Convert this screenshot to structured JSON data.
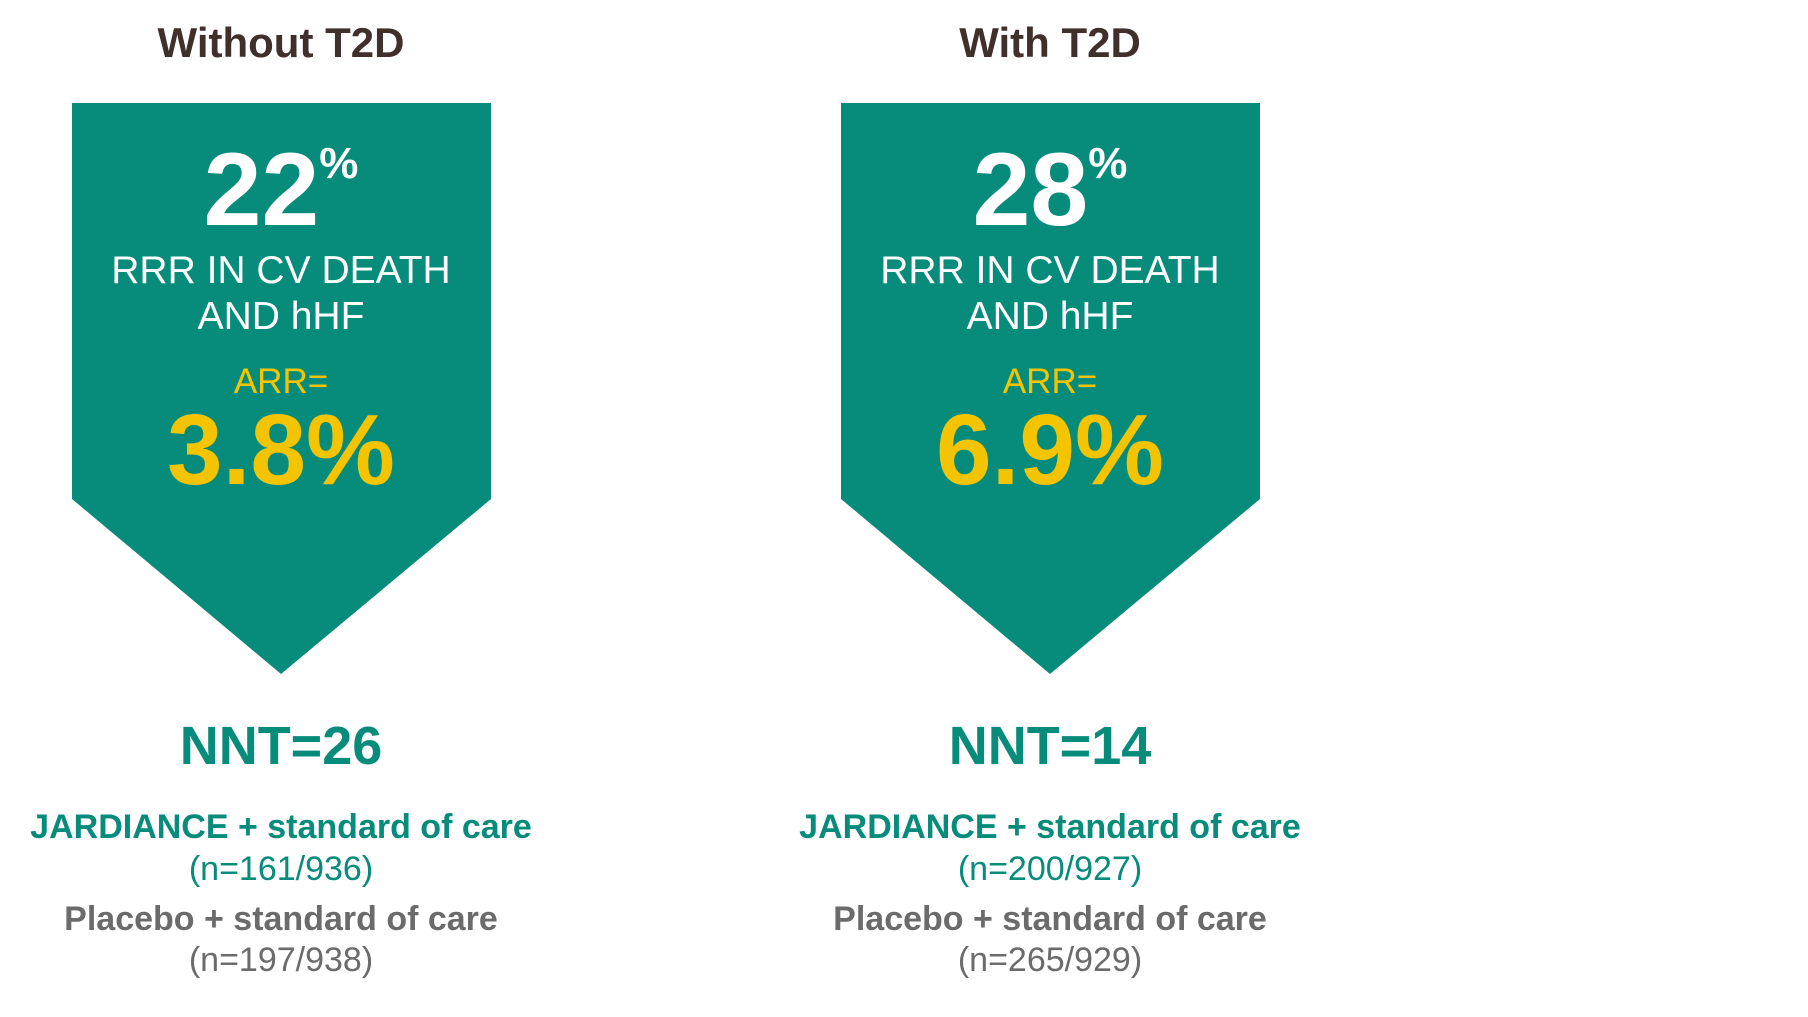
{
  "colors": {
    "teal": "#078C7B",
    "yellow": "#F5C400",
    "title": "#40302C",
    "gray": "#6B6B6B"
  },
  "panels": [
    {
      "title": "Without T2D",
      "rrr_value": "22",
      "rrr_unit": "%",
      "rrr_line1": "RRR IN CV DEATH",
      "rrr_line2": "AND hHF",
      "arr_label": "ARR=",
      "arr_value": "3.8%",
      "nnt": "NNT=26",
      "jardiance_label": "JARDIANCE + standard of care",
      "jardiance_n": "(n=161/936)",
      "placebo_label": "Placebo + standard of care",
      "placebo_n": "(n=197/938)"
    },
    {
      "title": "With T2D",
      "rrr_value": "28",
      "rrr_unit": "%",
      "rrr_line1": "RRR IN CV DEATH",
      "rrr_line2": "AND hHF",
      "arr_label": "ARR=",
      "arr_value": "6.9%",
      "nnt": "NNT=14",
      "jardiance_label": "JARDIANCE + standard of care",
      "jardiance_n": "(n=200/927)",
      "placebo_label": "Placebo + standard of care",
      "placebo_n": "(n=265/929)"
    }
  ]
}
